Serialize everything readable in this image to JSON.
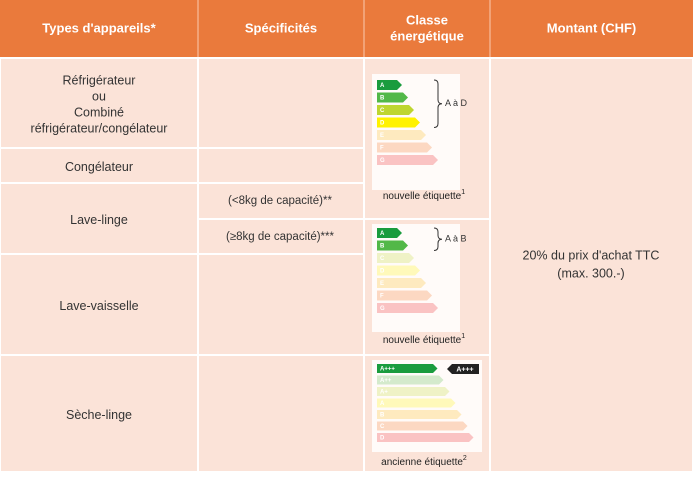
{
  "header": {
    "columns": [
      [
        "Types d'appareils*"
      ],
      [
        "Spécificités"
      ],
      [
        "Classe",
        "énergétique"
      ],
      [
        "Montant (CHF)"
      ]
    ]
  },
  "devices": [
    {
      "lines": [
        "Réfrigérateur",
        "ou",
        "Combiné",
        "réfrigérateur/congélateur"
      ]
    },
    {
      "lines": [
        "Congélateur"
      ]
    },
    {
      "lines": [
        "Lave-linge"
      ]
    },
    {
      "lines": [
        "Lave-vaisselle"
      ]
    },
    {
      "lines": [
        "Sèche-linge"
      ]
    }
  ],
  "specifications": [
    "(<8kg de capacité)**",
    "(≥8kg de capacité)***"
  ],
  "energy_labels": [
    {
      "classes": [
        "A",
        "B",
        "C",
        "D",
        "E",
        "F",
        "G"
      ],
      "range": "A à D",
      "caption": "nouvelle étiquette",
      "note": "1"
    },
    {
      "classes": [
        "A",
        "B",
        "C",
        "D",
        "E",
        "F",
        "G"
      ],
      "range": "A à B",
      "caption": "nouvelle étiquette",
      "note": "1"
    },
    {
      "classes": [
        "A+++",
        "A++",
        "A+",
        "A",
        "B",
        "C",
        "D"
      ],
      "badge": "A+++",
      "caption": "ancienne étiquette",
      "note": "2"
    }
  ],
  "amount": {
    "lines": [
      "20% du prix d'achat TTC",
      "(max. 300.-)"
    ]
  }
}
